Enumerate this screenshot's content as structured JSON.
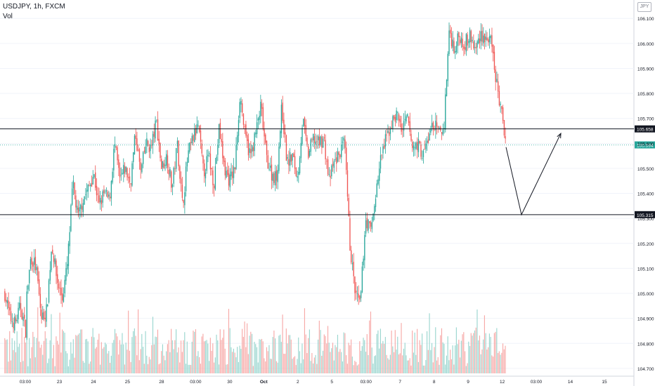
{
  "header": {
    "title": "USDJPY, 1h, FXCM",
    "volume_label": "Vol",
    "currency": "JPY"
  },
  "chart_data": {
    "type": "candlestick",
    "symbol": "USDJPY",
    "interval": "1h",
    "source": "FXCM",
    "price_range": [
      104.68,
      106.14
    ],
    "y_ticks": [
      "106.100",
      "106.000",
      "105.900",
      "105.800",
      "105.700",
      "105.600",
      "105.500",
      "105.400",
      "105.300",
      "105.200",
      "105.100",
      "105.000",
      "104.900",
      "104.800",
      "104.700"
    ],
    "x_ticks": [
      "03:00",
      "23",
      "24",
      "25",
      "28",
      "03:00",
      "30",
      "Oct",
      "2",
      "5",
      "03:00",
      "7",
      "8",
      "9",
      "12",
      "03:00",
      "14",
      "15"
    ],
    "horizontal_lines": [
      {
        "price": 105.658,
        "label": "105.658"
      },
      {
        "price": 105.315,
        "label": "105.315"
      }
    ],
    "last_price": {
      "price": 105.594,
      "label": "105.594"
    },
    "projection_path": [
      [
        0.0,
        105.585
      ],
      [
        0.22,
        105.315
      ],
      [
        0.78,
        105.64
      ]
    ],
    "colors": {
      "up": "#26a69a",
      "down": "#ef5350",
      "vol_up": "#9ad6cf",
      "vol_down": "#f7a9a7",
      "line": "#131722",
      "last": "#26a69a"
    },
    "segments": [
      [
        105.0,
        104.9,
        104.88,
        104.95,
        104.85
      ],
      [
        104.95,
        105.15,
        105.1,
        104.9,
        104.93
      ],
      [
        104.93,
        105.2,
        105.05,
        104.98,
        105.12
      ],
      [
        105.12,
        105.44,
        105.3,
        105.38,
        105.42
      ],
      [
        105.42,
        105.48,
        105.35,
        105.4,
        105.37
      ],
      [
        105.37,
        105.6,
        105.45,
        105.5,
        105.44
      ],
      [
        105.44,
        105.64,
        105.48,
        105.6,
        105.58
      ],
      [
        105.58,
        105.69,
        105.5,
        105.55,
        105.42
      ],
      [
        105.42,
        105.6,
        105.35,
        105.55,
        105.62
      ],
      [
        105.62,
        105.67,
        105.48,
        105.55,
        105.44
      ],
      [
        105.44,
        105.66,
        105.5,
        105.45,
        105.5
      ],
      [
        105.5,
        105.8,
        105.62,
        105.55,
        105.64
      ],
      [
        105.64,
        105.75,
        105.55,
        105.48,
        105.46
      ],
      [
        105.46,
        105.75,
        105.52,
        105.55,
        105.46
      ],
      [
        105.46,
        105.7,
        105.55,
        105.62,
        105.6
      ],
      [
        105.6,
        105.62,
        105.45,
        105.52,
        105.56
      ],
      [
        105.56,
        105.6,
        105.2,
        105.0,
        104.95
      ],
      [
        104.95,
        105.3,
        105.25,
        105.4,
        105.55
      ],
      [
        105.55,
        105.62,
        105.68,
        105.72,
        105.65
      ],
      [
        105.65,
        105.7,
        105.58,
        105.6,
        105.55
      ],
      [
        105.55,
        105.62,
        105.68,
        105.64,
        105.66
      ],
      [
        105.66,
        106.05,
        105.98,
        106.03,
        106.0
      ],
      [
        106.0,
        106.03,
        105.97,
        106.04,
        106.02
      ],
      [
        106.02,
        106.0,
        105.85,
        105.72,
        105.59
      ]
    ]
  }
}
